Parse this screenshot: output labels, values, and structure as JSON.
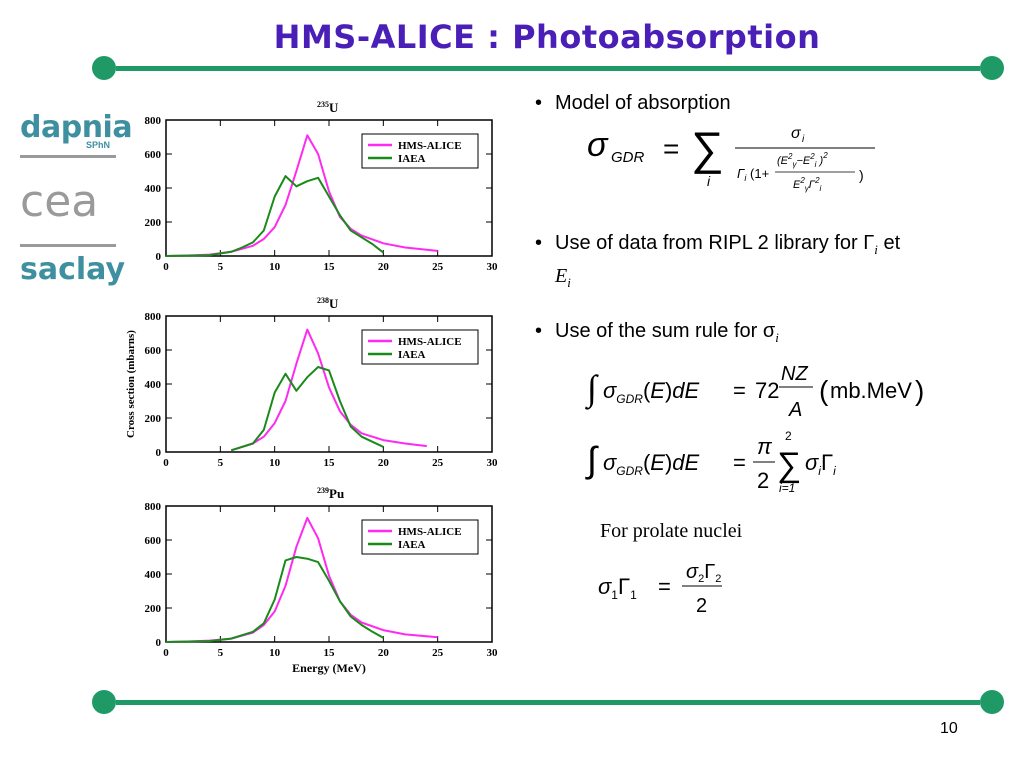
{
  "slide": {
    "title": "HMS-ALICE : Photoabsorption",
    "page_number": "10",
    "colors": {
      "title": "#4a1fb8",
      "rule": "#1f9a67",
      "hms": "#ff2af0",
      "iaea": "#1a8a1a"
    }
  },
  "logos": {
    "dapnia": "dapnia",
    "sphn": "SPhN",
    "cea": "cea",
    "saclay": "saclay"
  },
  "bullets": {
    "b1": "Model of absorption",
    "b2_text": "Use of data from RIPL 2 library for Γ",
    "b2_sub": "i",
    "b2_et": " et ",
    "b2_E": "E",
    "b2_Esub": "i",
    "b3_text": "Use of the sum rule for σ",
    "b3_sub": "i",
    "prolate": "For prolate nuclei"
  },
  "equations": {
    "gdr_lhs": "σ",
    "gdr_lhs_sub": "GDR",
    "sum_index": "i",
    "num": "σ",
    "num_sub": "i",
    "rule1_rhs_num": "NZ",
    "rule1_rhs_den": "A",
    "rule1_const": "72",
    "rule1_unit": "mb.MeV",
    "rule2_num": "π",
    "rule2_den": "2",
    "rule2_upper": "2",
    "rule2_lower": "i=1",
    "prolate_rhs_den": "2"
  },
  "chart_data": [
    {
      "type": "line",
      "title": "235U",
      "title_sup": "235",
      "title_main": "U",
      "xlim": [
        0,
        30
      ],
      "ylim": [
        0,
        800
      ],
      "xticks": [
        0,
        5,
        10,
        15,
        20,
        25,
        30
      ],
      "yticks": [
        0,
        200,
        400,
        600,
        800
      ],
      "legend": "top-right",
      "series": [
        {
          "name": "HMS-ALICE",
          "color": "#ff2af0",
          "x": [
            0,
            2,
            4,
            6,
            8,
            9,
            10,
            11,
            12,
            13,
            14,
            15,
            16,
            17,
            18,
            20,
            22,
            25
          ],
          "y": [
            0,
            3,
            8,
            25,
            60,
            100,
            170,
            300,
            500,
            710,
            600,
            380,
            230,
            160,
            120,
            75,
            50,
            30
          ]
        },
        {
          "name": "IAEA",
          "color": "#1a8a1a",
          "x": [
            0,
            4,
            6,
            7,
            8,
            9,
            10,
            11,
            12,
            13,
            14,
            15,
            16,
            17,
            18,
            19,
            20
          ],
          "y": [
            0,
            5,
            25,
            50,
            80,
            150,
            350,
            470,
            410,
            440,
            460,
            350,
            240,
            150,
            110,
            70,
            20
          ]
        }
      ]
    },
    {
      "type": "line",
      "title": "238U",
      "title_sup": "238",
      "title_main": "U",
      "ylabel": "Cross section (mbarns)",
      "xlim": [
        0,
        30
      ],
      "ylim": [
        0,
        800
      ],
      "xticks": [
        0,
        5,
        10,
        15,
        20,
        25,
        30
      ],
      "yticks": [
        0,
        200,
        400,
        600,
        800
      ],
      "legend": "top-right",
      "series": [
        {
          "name": "HMS-ALICE",
          "color": "#ff2af0",
          "x": [
            6,
            8,
            9,
            10,
            11,
            12,
            13,
            14,
            15,
            16,
            17,
            18,
            20,
            22,
            24
          ],
          "y": [
            10,
            50,
            90,
            170,
            300,
            520,
            720,
            580,
            380,
            240,
            160,
            110,
            70,
            50,
            35
          ]
        },
        {
          "name": "IAEA",
          "color": "#1a8a1a",
          "x": [
            6,
            8,
            9,
            10,
            11,
            12,
            13,
            14,
            15,
            16,
            17,
            18,
            19,
            20
          ],
          "y": [
            10,
            50,
            130,
            350,
            460,
            360,
            440,
            500,
            480,
            300,
            150,
            90,
            60,
            30
          ]
        }
      ]
    },
    {
      "type": "line",
      "title": "239Pu",
      "title_sup": "239",
      "title_main": "Pu",
      "xlabel": "Energy (MeV)",
      "xlim": [
        0,
        30
      ],
      "ylim": [
        0,
        800
      ],
      "xticks": [
        0,
        5,
        10,
        15,
        20,
        25,
        30
      ],
      "yticks": [
        0,
        200,
        400,
        600,
        800
      ],
      "legend": "top-right",
      "series": [
        {
          "name": "HMS-ALICE",
          "color": "#ff2af0",
          "x": [
            0,
            2,
            4,
            6,
            8,
            9,
            10,
            11,
            12,
            13,
            14,
            15,
            16,
            17,
            18,
            20,
            22,
            25
          ],
          "y": [
            0,
            3,
            8,
            20,
            55,
            100,
            180,
            330,
            560,
            730,
            610,
            390,
            240,
            160,
            115,
            70,
            45,
            28
          ]
        },
        {
          "name": "IAEA",
          "color": "#1a8a1a",
          "x": [
            0,
            4,
            6,
            8,
            9,
            10,
            11,
            12,
            13,
            14,
            15,
            16,
            17,
            18,
            19,
            20
          ],
          "y": [
            0,
            5,
            20,
            60,
            110,
            250,
            480,
            500,
            490,
            470,
            360,
            240,
            150,
            100,
            60,
            25
          ]
        }
      ]
    }
  ]
}
